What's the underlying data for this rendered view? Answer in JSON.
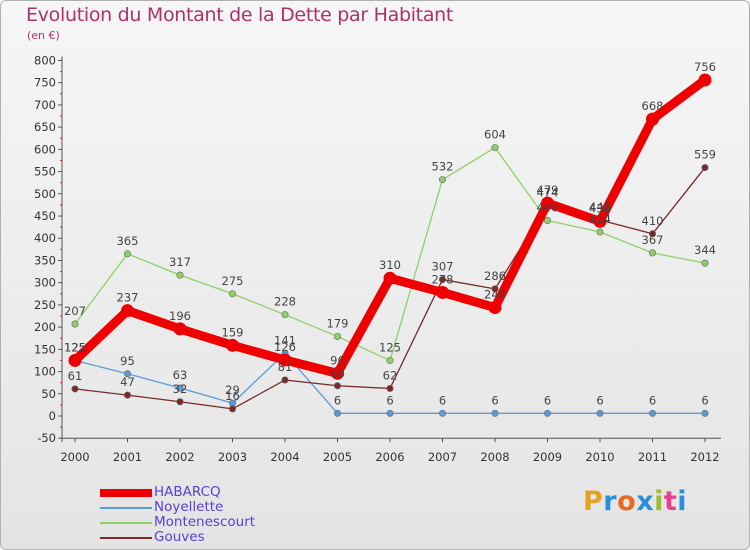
{
  "title": "Evolution du Montant de la Dette par Habitant",
  "subtitle": "(en €)",
  "brand": {
    "text": "Proxiti",
    "colors": [
      "#e8a020",
      "#2a8fd8",
      "#e86a20",
      "#2a8fd8",
      "#9bbd2a",
      "#e84090",
      "#2a8fd8"
    ]
  },
  "chart_data": {
    "type": "line",
    "title": "Evolution du Montant de la Dette par Habitant",
    "ylabel": "(en €)",
    "xlabel": "",
    "x": [
      "2000",
      "2001",
      "2002",
      "2003",
      "2004",
      "2005",
      "2006",
      "2007",
      "2008",
      "2009",
      "2010",
      "2011",
      "2012"
    ],
    "yticks": [
      "-50",
      "0",
      "50",
      "100",
      "150",
      "200",
      "250",
      "300",
      "350",
      "400",
      "450",
      "500",
      "550",
      "600",
      "650",
      "700",
      "750",
      "800"
    ],
    "ylim": [
      -50,
      800
    ],
    "grid": false,
    "legend_position": "bottom-left",
    "series": [
      {
        "name": "HABARCQ",
        "color": "#ee0000",
        "values": [
          125,
          237,
          196,
          159,
          126,
          96,
          310,
          278,
          244,
          479,
          438,
          668,
          756
        ],
        "labels": [
          "125",
          "237",
          "196",
          "159",
          "126",
          "96",
          "310",
          "278",
          "244",
          "479",
          "438",
          "668",
          "756"
        ]
      },
      {
        "name": "Noyellette",
        "color": "#5b9bd5",
        "values": [
          125,
          95,
          63,
          29,
          141,
          6,
          6,
          6,
          6,
          6,
          6,
          6,
          6
        ],
        "labels": [
          "125",
          "95",
          "63",
          "29",
          "141",
          "6",
          "6",
          "6",
          "6",
          "6",
          "6",
          "6",
          "6"
        ]
      },
      {
        "name": "Montenescourt",
        "color": "#8ed065",
        "values": [
          207,
          365,
          317,
          275,
          228,
          179,
          125,
          532,
          604,
          440,
          414,
          367,
          344
        ],
        "labels": [
          "207",
          "365",
          "317",
          "275",
          "228",
          "179",
          "125",
          "532",
          "604",
          "440",
          "414",
          "367",
          "344"
        ]
      },
      {
        "name": "Gouves",
        "color": "#7a2a2a",
        "values": [
          61,
          47,
          32,
          16,
          81,
          68,
          62,
          307,
          286,
          474,
          441,
          410,
          559
        ],
        "labels": [
          "61",
          "47",
          "32",
          "16",
          "81",
          "68",
          "62",
          "307",
          "286",
          "474",
          "441",
          "410",
          "559"
        ]
      }
    ]
  }
}
